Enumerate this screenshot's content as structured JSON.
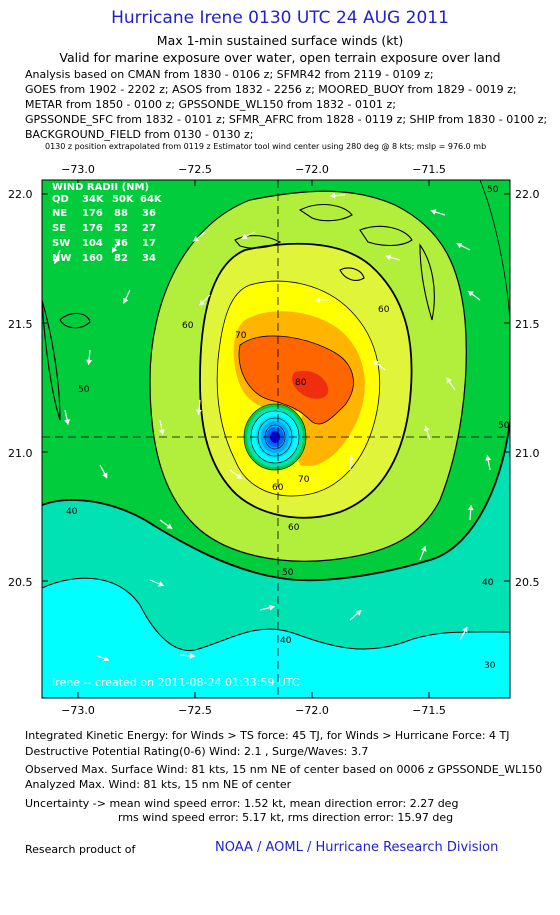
{
  "header": {
    "title": "Hurricane Irene 0130 UTC 24 AUG 2011",
    "subtitle1": "Max 1-min sustained surface winds (kt)",
    "subtitle2": "Valid for marine exposure over water, open terrain exposure over land",
    "analysis_lines": [
      "Analysis based on CMAN from 1830 - 0106 z; SFMR42 from 2119 - 0109 z;",
      "GOES from 1902 - 2202 z; ASOS from 1832 - 2256 z; MOORED_BUOY from 1829 - 0019 z;",
      "METAR from 1850 - 0100 z; GPSSONDE_WL150 from 1832 - 0101 z;",
      "GPSSONDE_SFC from 1832 - 0101 z; SFMR_AFRC from 1828 - 0119 z; SHIP from 1830 - 0100 z;",
      "BACKGROUND_FIELD from 0130 - 0130 z;"
    ],
    "position_note": "0130 z position extrapolated from 0119 z Estimator tool wind center using 280 deg @ 8 kts; mslp = 976.0 mb"
  },
  "chart_data": {
    "type": "heatmap",
    "x_ticks": [
      "−73.0",
      "−72.5",
      "−72.0",
      "−71.5"
    ],
    "y_ticks": [
      "22.0",
      "21.5",
      "21.0",
      "20.5"
    ],
    "xlim": [
      -73.15,
      -71.15
    ],
    "ylim": [
      20.03,
      22.06
    ],
    "center": {
      "lon": -72.14,
      "lat": 21.06
    },
    "contour_labels": [
      "60",
      "70",
      "80",
      "60",
      "70",
      "60",
      "50",
      "60",
      "50",
      "40",
      "40",
      "50",
      "40",
      "30",
      "50"
    ],
    "wind_radii": {
      "title": "WIND RADII (NM)",
      "header": [
        "QD",
        "34K",
        "50K",
        "64K"
      ],
      "rows": [
        [
          "NE",
          "176",
          "88",
          "36"
        ],
        [
          "SE",
          "176",
          "52",
          "27"
        ],
        [
          "SW",
          "104",
          "36",
          "17"
        ],
        [
          "NW",
          "160",
          "82",
          "34"
        ]
      ]
    },
    "created_stamp": "Irene -- created on 2011-08-24 01:33:59 UTC",
    "colors": {
      "kt20": "#00ffff",
      "kt40": "#00e1b4",
      "kt50": "#00cc3c",
      "kt60": "#b2ef3c",
      "kt64": "#e0f53a",
      "kt70": "#ffff00",
      "kt75": "#ffb400",
      "kt80": "#ff6600",
      "kt90": "#ee2e0e",
      "eye": "#0000cc"
    }
  },
  "footer": {
    "ike": "Integrated Kinetic Energy:  for Winds > TS force: 45 TJ,  for Winds > Hurricane Force: 4 TJ",
    "dpr": "Destructive Potential Rating(0-6)   Wind: 2.1 , Surge/Waves: 3.7",
    "observed": "Observed Max. Surface Wind: 81 kts, 15 nm NE of center based on 0006 z GPSSONDE_WL150",
    "analyzed": "Analyzed Max. Wind: 81 kts, 15 nm NE of center",
    "uncertainty1": "Uncertainty -> mean wind speed error: 1.52 kt,   mean direction error: 2.27 deg",
    "uncertainty2": "rms wind speed error: 5.17 kt,   rms direction error: 15.97 deg",
    "research": "Research product of",
    "org": "NOAA / AOML / Hurricane Research Division"
  }
}
